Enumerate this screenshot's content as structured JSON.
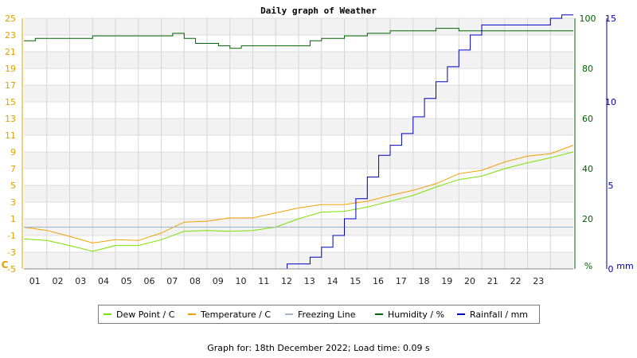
{
  "header": {
    "title": "Daily graph of Weather"
  },
  "chart_data": {
    "type": "line",
    "title": "Daily graph of Weather",
    "x_ticks": [
      "01",
      "02",
      "03",
      "04",
      "05",
      "06",
      "07",
      "08",
      "09",
      "10",
      "11",
      "12",
      "13",
      "14",
      "15",
      "16",
      "17",
      "18",
      "19",
      "20",
      "21",
      "22",
      "23"
    ],
    "x_range": [
      0,
      24
    ],
    "axes": {
      "temperature": {
        "unit": "C",
        "range": [
          -5,
          25
        ],
        "ticks": [
          -5,
          -3,
          -1,
          1,
          3,
          5,
          7,
          9,
          11,
          13,
          15,
          17,
          19,
          21,
          23,
          25
        ],
        "color": "#e0a000"
      },
      "humidity": {
        "unit": "%",
        "range": [
          0,
          100
        ],
        "ticks": [
          0,
          20,
          40,
          60,
          80,
          100
        ],
        "color": "#006400"
      },
      "rainfall": {
        "unit": "mm",
        "range": [
          0,
          15
        ],
        "ticks": [
          0,
          5,
          10,
          15
        ],
        "color": "#0000a0"
      }
    },
    "grid": true,
    "legend_position": "bottom",
    "series": [
      {
        "name": "Dew Point / C",
        "color": "#7be000",
        "axis": "temperature",
        "x": [
          0,
          1,
          2,
          3,
          4,
          5,
          6,
          7,
          8,
          9,
          10,
          11,
          12,
          13,
          14,
          15,
          16,
          17,
          18,
          19,
          20,
          21,
          22,
          23,
          24
        ],
        "y": [
          -1.4,
          -1.6,
          -2.2,
          -2.9,
          -2.2,
          -2.2,
          -1.5,
          -0.5,
          -0.4,
          -0.5,
          -0.4,
          0,
          1,
          1.8,
          1.9,
          2.4,
          3.1,
          3.8,
          4.8,
          5.7,
          6.1,
          7,
          7.7,
          8.3,
          9
        ]
      },
      {
        "name": "Temperature / C",
        "color": "#f0a000",
        "axis": "temperature",
        "x": [
          0,
          1,
          2,
          3,
          4,
          5,
          6,
          7,
          8,
          9,
          10,
          11,
          12,
          13,
          14,
          15,
          16,
          17,
          18,
          19,
          20,
          21,
          22,
          23,
          24
        ],
        "y": [
          0,
          -0.4,
          -1.1,
          -1.9,
          -1.5,
          -1.6,
          -0.7,
          0.6,
          0.7,
          1.1,
          1.1,
          1.7,
          2.3,
          2.7,
          2.7,
          3.1,
          3.8,
          4.4,
          5.2,
          6.4,
          6.8,
          7.8,
          8.5,
          8.8,
          9.8
        ]
      },
      {
        "name": "Freezing Line",
        "color": "#9fb4c8",
        "axis": "temperature",
        "x": [
          0,
          24
        ],
        "y": [
          0,
          0
        ]
      },
      {
        "name": "Humidity / %",
        "color": "#006400",
        "axis": "humidity",
        "x": [
          0,
          0.5,
          1,
          1.5,
          2,
          2.5,
          3,
          3.5,
          4,
          4.5,
          5,
          5.5,
          6,
          6.5,
          7,
          7.5,
          8,
          8.5,
          9,
          9.5,
          10,
          10.5,
          11,
          11.5,
          12,
          12.5,
          13,
          13.5,
          14,
          14.5,
          15,
          15.5,
          16,
          16.5,
          17,
          17.5,
          18,
          18.5,
          19,
          19.5,
          20,
          20.5,
          21,
          21.5,
          22,
          22.5,
          23,
          23.5,
          24
        ],
        "y": [
          91,
          92,
          92,
          92,
          92,
          92,
          93,
          93,
          93,
          93,
          93,
          93,
          93,
          94,
          92,
          90,
          90,
          89,
          88,
          89,
          89,
          89,
          89,
          89,
          89,
          91,
          92,
          92,
          93,
          93,
          94,
          94,
          95,
          95,
          95,
          95,
          96,
          96,
          95,
          95,
          95,
          95,
          95,
          95,
          95,
          95,
          95,
          95,
          95
        ]
      },
      {
        "name": "Rainfall / mm",
        "color": "#0000c0",
        "axis": "rainfall",
        "x": [
          0,
          1,
          2,
          3,
          4,
          5,
          6,
          7,
          8,
          9,
          10,
          11,
          11.5,
          12,
          12.5,
          13,
          13.5,
          14,
          14.5,
          15,
          15.5,
          16,
          16.5,
          17,
          17.5,
          18,
          18.5,
          19,
          19.5,
          20,
          21,
          22,
          23,
          23.5,
          24
        ],
        "y": [
          0,
          0,
          0,
          0,
          0,
          0,
          0,
          0,
          0,
          0,
          0,
          0,
          0.3,
          0.3,
          0.7,
          1.3,
          2,
          3,
          4.2,
          5.5,
          6.8,
          7.4,
          8.1,
          9.1,
          10.2,
          11.2,
          12.1,
          13.1,
          14,
          14.6,
          14.6,
          14.6,
          15,
          15.2,
          15.2
        ]
      }
    ]
  },
  "legend": [
    {
      "label": "Dew Point / C",
      "color": "#7be000"
    },
    {
      "label": "Temperature / C",
      "color": "#f0a000"
    },
    {
      "label": "Freezing Line",
      "color": "#9fb4c8"
    },
    {
      "label": "Humidity / %",
      "color": "#006400"
    },
    {
      "label": "Rainfall / mm",
      "color": "#0000c0"
    }
  ],
  "axis_labels": {
    "left_unit": "C",
    "humidity_unit": "%",
    "rain_unit": "mm"
  },
  "footer": {
    "text": "Graph for: 18th December 2022; Load time: 0.09 s"
  }
}
